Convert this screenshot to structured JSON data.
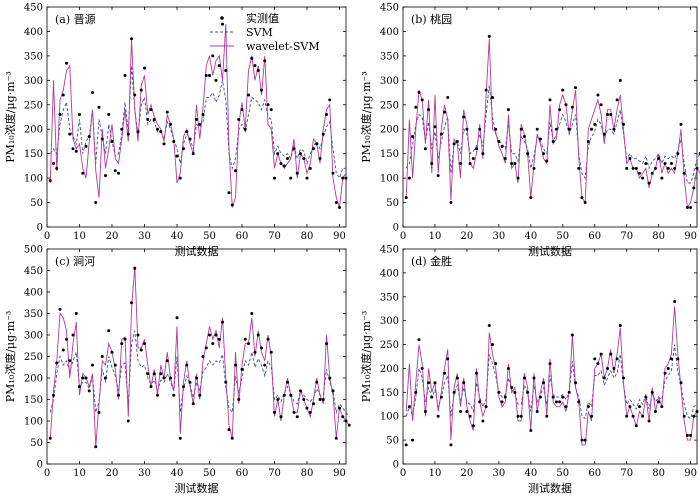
{
  "figure": {
    "xlabel": "测试数据",
    "ylabel": "PM₁₀浓度/μg·m⁻³"
  },
  "legend": {
    "observed": "实测值",
    "svm": "SVM",
    "wsvm": "wavelet-SVM"
  },
  "colors": {
    "observed": "#000000",
    "svm": "#3d4f8f",
    "wsvm": "#b5399e"
  },
  "chart_data": [
    {
      "type": "line",
      "title": "(a) 晋源",
      "xlim": [
        0,
        92
      ],
      "xticks": [
        0,
        10,
        20,
        30,
        40,
        50,
        60,
        70,
        80,
        90
      ],
      "ylim": [
        0,
        450
      ],
      "yticks": [
        0,
        50,
        100,
        150,
        200,
        250,
        300,
        350,
        400,
        450
      ],
      "legend_position": "top-center",
      "observed": [
        95,
        130,
        120,
        230,
        270,
        335,
        190,
        160,
        155,
        230,
        110,
        165,
        185,
        275,
        50,
        245,
        180,
        105,
        230,
        175,
        115,
        110,
        200,
        310,
        190,
        385,
        270,
        195,
        280,
        325,
        220,
        240,
        220,
        200,
        195,
        170,
        235,
        210,
        175,
        145,
        100,
        160,
        195,
        180,
        150,
        220,
        210,
        230,
        310,
        310,
        350,
        300,
        330,
        415,
        320,
        70,
        45,
        115,
        220,
        240,
        200,
        270,
        345,
        330,
        320,
        280,
        340,
        250,
        240,
        100,
        150,
        130,
        125,
        140,
        100,
        160,
        110,
        150,
        140,
        100,
        120,
        160,
        170,
        140,
        190,
        230,
        260,
        110,
        50,
        40,
        100,
        100
      ],
      "svm": [
        150,
        160,
        150,
        210,
        240,
        255,
        200,
        185,
        170,
        220,
        150,
        175,
        185,
        240,
        130,
        220,
        185,
        150,
        210,
        175,
        145,
        150,
        190,
        255,
        195,
        330,
        240,
        190,
        250,
        265,
        210,
        220,
        215,
        195,
        195,
        180,
        215,
        200,
        180,
        160,
        130,
        170,
        190,
        180,
        160,
        210,
        205,
        215,
        265,
        265,
        275,
        255,
        270,
        300,
        260,
        150,
        120,
        140,
        200,
        210,
        195,
        230,
        265,
        260,
        255,
        240,
        260,
        225,
        220,
        150,
        165,
        150,
        145,
        150,
        140,
        165,
        140,
        160,
        155,
        130,
        150,
        165,
        175,
        160,
        185,
        205,
        215,
        160,
        110,
        100,
        120,
        120
      ],
      "wsvm": [
        90,
        300,
        115,
        260,
        280,
        320,
        330,
        180,
        160,
        170,
        120,
        100,
        175,
        240,
        115,
        60,
        200,
        120,
        160,
        210,
        140,
        130,
        180,
        240,
        175,
        385,
        240,
        175,
        290,
        310,
        230,
        250,
        225,
        210,
        200,
        175,
        230,
        210,
        180,
        90,
        110,
        185,
        200,
        170,
        150,
        250,
        180,
        245,
        330,
        350,
        310,
        340,
        350,
        300,
        415,
        160,
        40,
        60,
        210,
        255,
        200,
        320,
        350,
        300,
        330,
        270,
        350,
        210,
        200,
        120,
        150,
        130,
        120,
        130,
        140,
        180,
        100,
        150,
        140,
        110,
        130,
        180,
        170,
        130,
        200,
        240,
        250,
        100,
        60,
        40,
        100,
        110
      ]
    },
    {
      "type": "line",
      "title": "(b) 桃园",
      "xlim": [
        0,
        92
      ],
      "xticks": [
        0,
        10,
        20,
        30,
        40,
        50,
        60,
        70,
        80,
        90
      ],
      "ylim": [
        0,
        450
      ],
      "yticks": [
        0,
        50,
        100,
        150,
        200,
        250,
        300,
        350,
        400,
        450
      ],
      "observed": [
        60,
        100,
        185,
        245,
        275,
        260,
        160,
        240,
        130,
        205,
        105,
        190,
        235,
        265,
        50,
        170,
        175,
        130,
        225,
        200,
        130,
        140,
        160,
        200,
        150,
        280,
        390,
        265,
        200,
        175,
        165,
        140,
        240,
        130,
        130,
        100,
        200,
        185,
        150,
        60,
        120,
        200,
        180,
        150,
        135,
        260,
        175,
        200,
        240,
        280,
        250,
        200,
        245,
        285,
        120,
        60,
        50,
        175,
        200,
        210,
        270,
        250,
        190,
        230,
        230,
        200,
        260,
        300,
        210,
        120,
        140,
        120,
        120,
        110,
        100,
        130,
        90,
        110,
        120,
        140,
        100,
        130,
        120,
        130,
        120,
        150,
        210,
        110,
        40,
        40,
        80,
        120,
        150
      ],
      "svm": [
        120,
        130,
        170,
        210,
        230,
        225,
        175,
        215,
        160,
        195,
        140,
        175,
        205,
        225,
        110,
        170,
        175,
        150,
        200,
        190,
        150,
        155,
        165,
        190,
        165,
        230,
        290,
        225,
        190,
        175,
        170,
        160,
        210,
        150,
        150,
        135,
        185,
        175,
        160,
        120,
        145,
        185,
        175,
        160,
        150,
        215,
        175,
        190,
        210,
        230,
        215,
        190,
        210,
        230,
        150,
        110,
        100,
        165,
        185,
        195,
        220,
        210,
        180,
        200,
        200,
        190,
        215,
        240,
        190,
        140,
        150,
        140,
        140,
        135,
        130,
        145,
        120,
        135,
        140,
        150,
        130,
        145,
        140,
        145,
        140,
        155,
        180,
        130,
        90,
        90,
        110,
        140,
        150
      ],
      "wsvm": [
        60,
        220,
        100,
        200,
        280,
        260,
        170,
        260,
        110,
        270,
        110,
        200,
        250,
        220,
        55,
        180,
        170,
        100,
        240,
        210,
        130,
        120,
        150,
        210,
        140,
        270,
        385,
        200,
        195,
        165,
        150,
        130,
        230,
        120,
        130,
        90,
        210,
        190,
        150,
        60,
        130,
        190,
        170,
        140,
        130,
        250,
        170,
        180,
        250,
        270,
        250,
        190,
        240,
        280,
        140,
        60,
        50,
        200,
        220,
        240,
        260,
        230,
        170,
        240,
        240,
        200,
        240,
        270,
        200,
        130,
        140,
        120,
        120,
        100,
        110,
        120,
        80,
        110,
        120,
        150,
        110,
        130,
        110,
        120,
        110,
        150,
        200,
        100,
        40,
        50,
        80,
        120,
        110
      ]
    },
    {
      "type": "line",
      "title": "(c) 涧河",
      "xlim": [
        0,
        92
      ],
      "xticks": [
        0,
        10,
        20,
        30,
        40,
        50,
        60,
        70,
        80,
        90
      ],
      "ylim": [
        0,
        500
      ],
      "yticks": [
        0,
        50,
        100,
        150,
        200,
        250,
        300,
        350,
        400,
        450,
        500
      ],
      "observed": [
        60,
        160,
        235,
        360,
        265,
        290,
        240,
        300,
        350,
        180,
        200,
        200,
        170,
        230,
        40,
        120,
        250,
        200,
        310,
        260,
        230,
        160,
        280,
        290,
        100,
        375,
        455,
        300,
        265,
        280,
        210,
        180,
        210,
        160,
        210,
        200,
        240,
        200,
        160,
        340,
        60,
        180,
        230,
        190,
        140,
        200,
        160,
        250,
        270,
        300,
        280,
        300,
        290,
        330,
        190,
        80,
        60,
        230,
        150,
        220,
        290,
        280,
        350,
        260,
        300,
        270,
        230,
        290,
        260,
        120,
        150,
        110,
        160,
        190,
        160,
        120,
        110,
        170,
        150,
        130,
        120,
        140,
        190,
        150,
        150,
        280,
        200,
        170,
        60,
        130,
        110,
        100,
        90
      ],
      "svm": [
        120,
        150,
        210,
        250,
        230,
        240,
        215,
        240,
        260,
        180,
        190,
        190,
        175,
        205,
        120,
        145,
        220,
        190,
        250,
        225,
        205,
        170,
        230,
        235,
        140,
        280,
        310,
        240,
        225,
        230,
        200,
        185,
        195,
        170,
        195,
        190,
        210,
        190,
        170,
        250,
        120,
        175,
        205,
        185,
        155,
        190,
        170,
        215,
        225,
        240,
        230,
        240,
        235,
        255,
        180,
        130,
        120,
        205,
        165,
        200,
        240,
        230,
        260,
        225,
        245,
        230,
        205,
        240,
        225,
        150,
        160,
        145,
        165,
        180,
        165,
        145,
        140,
        170,
        160,
        150,
        145,
        155,
        175,
        160,
        160,
        220,
        190,
        170,
        120,
        140,
        130,
        120,
        110
      ],
      "wsvm": [
        60,
        170,
        240,
        350,
        340,
        310,
        200,
        280,
        330,
        160,
        210,
        200,
        180,
        210,
        40,
        140,
        240,
        230,
        280,
        260,
        220,
        150,
        290,
        295,
        110,
        360,
        460,
        270,
        270,
        290,
        230,
        180,
        220,
        160,
        230,
        200,
        260,
        200,
        170,
        320,
        70,
        190,
        240,
        180,
        140,
        210,
        150,
        240,
        280,
        320,
        290,
        310,
        270,
        340,
        200,
        90,
        60,
        260,
        140,
        230,
        280,
        280,
        340,
        250,
        310,
        260,
        240,
        300,
        250,
        110,
        150,
        100,
        160,
        200,
        160,
        120,
        120,
        170,
        150,
        130,
        110,
        150,
        200,
        160,
        140,
        300,
        200,
        160,
        60,
        130,
        110,
        100,
        90
      ]
    },
    {
      "type": "line",
      "title": "(d) 金胜",
      "xlim": [
        0,
        92
      ],
      "xticks": [
        0,
        10,
        20,
        30,
        40,
        50,
        60,
        70,
        80,
        90
      ],
      "ylim": [
        0,
        450
      ],
      "yticks": [
        0,
        50,
        100,
        150,
        200,
        250,
        300,
        350,
        400,
        450
      ],
      "observed": [
        40,
        120,
        50,
        150,
        260,
        200,
        110,
        170,
        140,
        170,
        100,
        140,
        190,
        220,
        40,
        150,
        180,
        110,
        170,
        110,
        100,
        80,
        190,
        130,
        90,
        120,
        290,
        250,
        210,
        150,
        130,
        140,
        200,
        160,
        150,
        100,
        100,
        180,
        150,
        70,
        180,
        110,
        140,
        170,
        100,
        210,
        140,
        130,
        130,
        140,
        120,
        150,
        270,
        170,
        130,
        50,
        50,
        120,
        100,
        220,
        210,
        230,
        180,
        200,
        230,
        200,
        220,
        290,
        180,
        100,
        120,
        100,
        80,
        120,
        100,
        140,
        90,
        150,
        110,
        130,
        120,
        190,
        200,
        220,
        340,
        220,
        170,
        100,
        60,
        60,
        100,
        110
      ],
      "svm": [
        100,
        120,
        100,
        140,
        200,
        180,
        130,
        160,
        140,
        155,
        120,
        140,
        170,
        185,
        100,
        145,
        165,
        130,
        160,
        130,
        125,
        110,
        170,
        140,
        120,
        135,
        230,
        210,
        185,
        150,
        140,
        145,
        180,
        155,
        150,
        125,
        125,
        165,
        150,
        110,
        165,
        130,
        145,
        160,
        125,
        185,
        145,
        140,
        140,
        145,
        135,
        150,
        215,
        160,
        140,
        100,
        95,
        130,
        120,
        185,
        185,
        195,
        165,
        180,
        195,
        180,
        190,
        230,
        165,
        125,
        135,
        125,
        115,
        135,
        125,
        145,
        115,
        150,
        130,
        140,
        135,
        175,
        185,
        195,
        250,
        195,
        165,
        125,
        100,
        95,
        120,
        125
      ],
      "wsvm": [
        110,
        210,
        90,
        170,
        250,
        210,
        100,
        200,
        150,
        170,
        110,
        150,
        200,
        240,
        50,
        160,
        190,
        120,
        180,
        120,
        90,
        70,
        200,
        130,
        100,
        120,
        275,
        230,
        200,
        140,
        120,
        130,
        210,
        150,
        160,
        90,
        90,
        190,
        160,
        70,
        190,
        110,
        150,
        180,
        100,
        220,
        130,
        120,
        120,
        130,
        110,
        150,
        270,
        160,
        130,
        40,
        40,
        110,
        90,
        200,
        210,
        230,
        180,
        200,
        240,
        190,
        230,
        285,
        170,
        100,
        120,
        100,
        80,
        110,
        100,
        140,
        90,
        160,
        110,
        140,
        120,
        200,
        210,
        230,
        330,
        230,
        160,
        90,
        50,
        50,
        100,
        110
      ]
    }
  ]
}
